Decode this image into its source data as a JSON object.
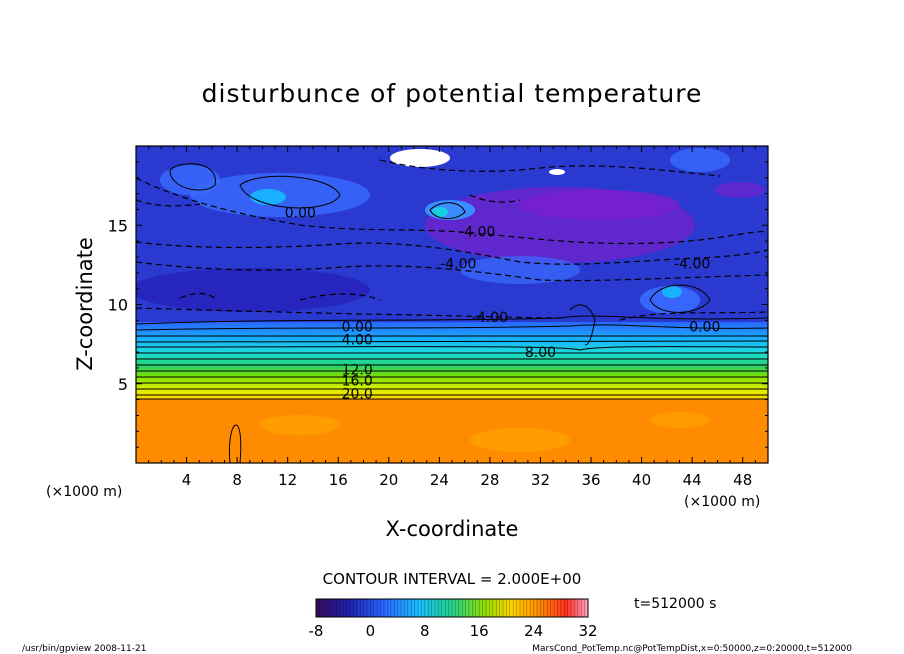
{
  "chart_data": {
    "type": "heatmap",
    "title": "disturbunce of potential temperature",
    "xlabel": "X-coordinate",
    "ylabel": "Z-coordinate",
    "x_unit_left": "(×1000 m)",
    "x_unit_right": "(×1000 m)",
    "xlim": [
      0,
      50
    ],
    "ylim": [
      0,
      20
    ],
    "xticks": [
      4,
      8,
      12,
      16,
      20,
      24,
      28,
      32,
      36,
      40,
      44,
      48
    ],
    "yticks": [
      5,
      10,
      15
    ],
    "colorbar": {
      "range": [
        -8,
        32
      ],
      "ticks": [
        -8,
        0,
        8,
        16,
        24,
        32
      ]
    },
    "contour_interval_label": "CONTOUR INTERVAL = 2.000E+00",
    "contour_labels": [
      {
        "text": "0.00",
        "x": 13.0,
        "z": 15.8
      },
      {
        "text": "-4.00",
        "x": 27.0,
        "z": 14.6
      },
      {
        "text": "-4.00",
        "x": 25.5,
        "z": 12.6
      },
      {
        "text": "-4.00",
        "x": 28.0,
        "z": 9.2
      },
      {
        "text": "-4.00",
        "x": 44.0,
        "z": 12.6
      },
      {
        "text": "0.00",
        "x": 17.5,
        "z": 8.6
      },
      {
        "text": "0.00",
        "x": 45.0,
        "z": 8.6
      },
      {
        "text": "4.00",
        "x": 17.5,
        "z": 7.8
      },
      {
        "text": "8.00",
        "x": 32.0,
        "z": 7.0
      },
      {
        "text": "12.0",
        "x": 17.5,
        "z": 5.9
      },
      {
        "text": "16.0",
        "x": 17.5,
        "z": 5.2
      },
      {
        "text": "20.0",
        "x": 17.5,
        "z": 4.4
      }
    ],
    "layers": [
      {
        "z": [
          0,
          4
        ],
        "value": 26
      },
      {
        "z": [
          4,
          8.5
        ],
        "value": "gradient 20 to 0"
      },
      {
        "z": [
          8.5,
          20
        ],
        "value": "-4 to -6 with patches"
      }
    ]
  },
  "time_label": "t=512000 s",
  "footer_left": "/usr/bin/gpview   2008-11-21",
  "footer_right": "MarsCond_PotTemp.nc@PotTempDist,x=0:50000,z=0:20000,t=512000",
  "colors": {
    "surface_orange": "#ff8c00",
    "upper_blue": "#2a33cc",
    "purple_patch": "#7a1fd0"
  }
}
